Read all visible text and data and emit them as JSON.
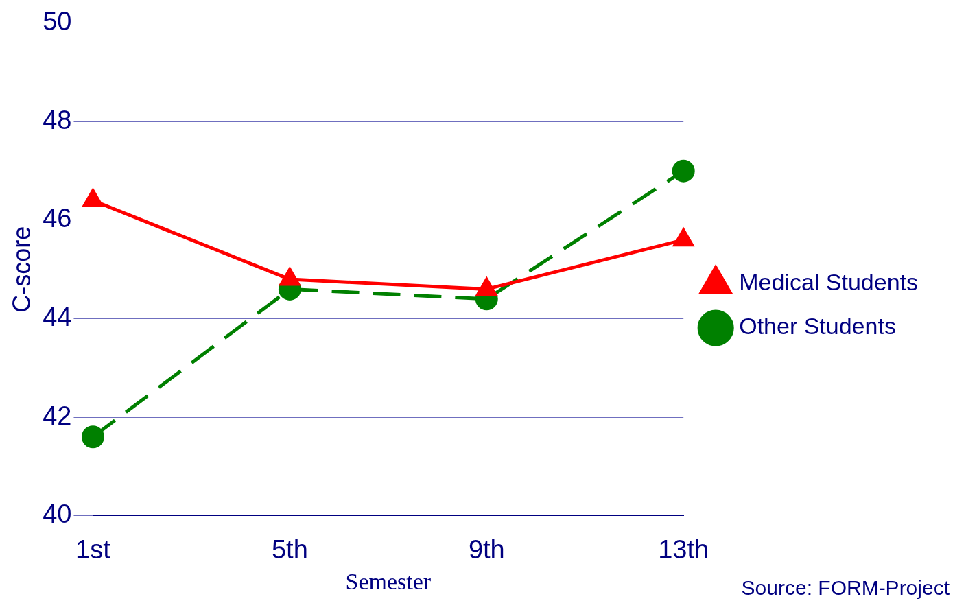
{
  "chart_data": {
    "type": "line",
    "xlabel": "Semester",
    "ylabel": "C-score",
    "categories": [
      "1st",
      "5th",
      "9th",
      "13th"
    ],
    "series": [
      {
        "name": "Medical Students",
        "color": "#ff0000",
        "values": [
          46.4,
          44.8,
          44.6,
          45.6
        ],
        "marker": "triangle",
        "line_style": "solid"
      },
      {
        "name": "Other Students",
        "color": "#008000",
        "values": [
          41.6,
          44.6,
          44.4,
          47.0
        ],
        "marker": "circle",
        "line_style": "dashed"
      }
    ],
    "ylim": [
      40,
      50
    ],
    "yticks": [
      40,
      42,
      44,
      46,
      48,
      50
    ],
    "grid": "y",
    "legend": "right",
    "annotations": [
      "Source: FORM-Project"
    ]
  }
}
